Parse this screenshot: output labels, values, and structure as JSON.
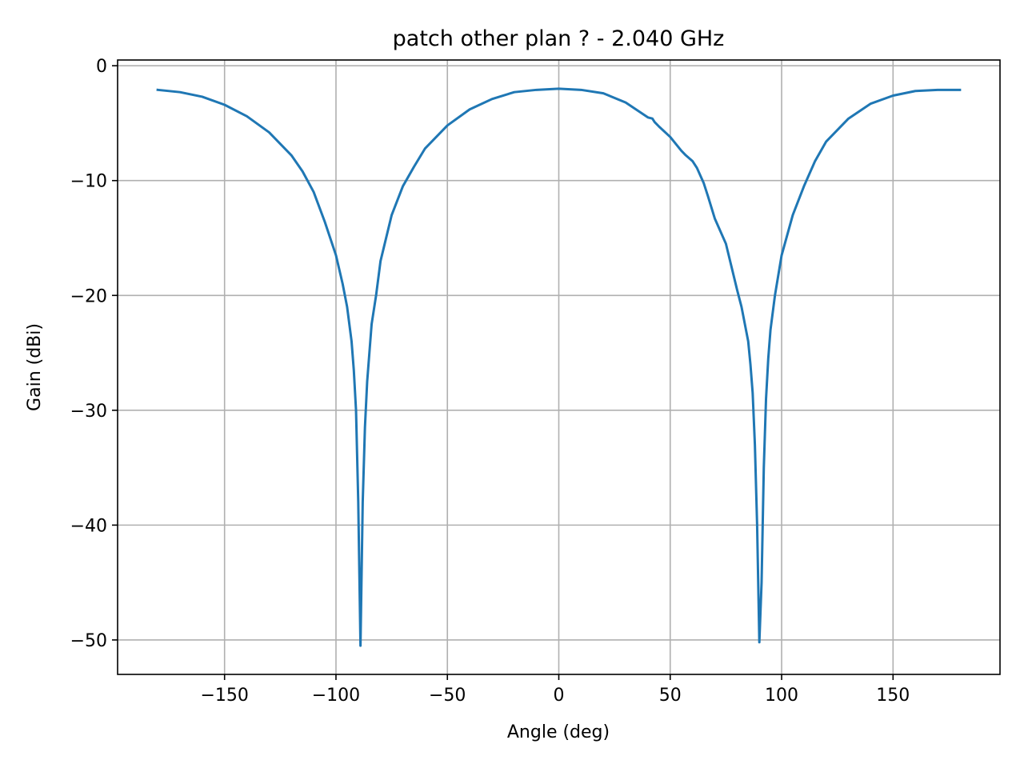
{
  "chart_data": {
    "type": "line",
    "title": "patch other plan ? - 2.040 GHz",
    "xlabel": "Angle (deg)",
    "ylabel": "Gain (dBi)",
    "xlim": [
      -198,
      198
    ],
    "ylim": [
      -53,
      0.5
    ],
    "xticks": [
      -150,
      -100,
      -50,
      0,
      50,
      100,
      150
    ],
    "xtick_labels": [
      "−150",
      "−100",
      "−50",
      "0",
      "50",
      "100",
      "150"
    ],
    "yticks": [
      0,
      -10,
      -20,
      -30,
      -40,
      -50
    ],
    "ytick_labels": [
      "0",
      "−10",
      "−20",
      "−30",
      "−40",
      "−50"
    ],
    "grid": true,
    "legend": "none",
    "series": [
      {
        "color": "#1f77b4",
        "x": [
          -180,
          -170,
          -160,
          -150,
          -140,
          -130,
          -120,
          -115,
          -110,
          -105,
          -100,
          -97,
          -95,
          -93,
          -92,
          -91,
          -90,
          -89,
          -88,
          -87,
          -86,
          -85,
          -84,
          -82,
          -80,
          -75,
          -70,
          -65,
          -60,
          -50,
          -40,
          -30,
          -20,
          -10,
          0,
          10,
          20,
          30,
          40,
          42,
          43,
          45,
          50,
          55,
          57,
          60,
          62,
          65,
          67,
          70,
          75,
          80,
          82,
          85,
          86,
          87,
          88,
          89,
          90,
          91,
          92,
          93,
          94,
          95,
          97,
          100,
          105,
          110,
          115,
          120,
          130,
          140,
          150,
          160,
          170,
          180
        ],
        "y": [
          -2.1,
          -2.3,
          -2.7,
          -3.4,
          -4.4,
          -5.8,
          -7.8,
          -9.2,
          -11.0,
          -13.6,
          -16.5,
          -19.0,
          -21.0,
          -24.0,
          -26.5,
          -30.0,
          -38.0,
          -50.5,
          -38.0,
          -31.5,
          -27.5,
          -25.0,
          -22.5,
          -20.0,
          -17.0,
          -13.0,
          -10.5,
          -8.8,
          -7.2,
          -5.2,
          -3.8,
          -2.9,
          -2.3,
          -2.1,
          -2.0,
          -2.1,
          -2.4,
          -3.2,
          -4.5,
          -4.6,
          -4.9,
          -5.3,
          -6.2,
          -7.4,
          -7.8,
          -8.3,
          -8.9,
          -10.2,
          -11.4,
          -13.3,
          -15.5,
          -19.5,
          -21.0,
          -24.0,
          -26.0,
          -28.5,
          -33.0,
          -40.0,
          -50.2,
          -45.0,
          -35.0,
          -29.0,
          -25.5,
          -23.0,
          -20.0,
          -16.5,
          -13.0,
          -10.5,
          -8.3,
          -6.6,
          -4.6,
          -3.3,
          -2.6,
          -2.2,
          -2.1,
          -2.1
        ]
      }
    ]
  }
}
